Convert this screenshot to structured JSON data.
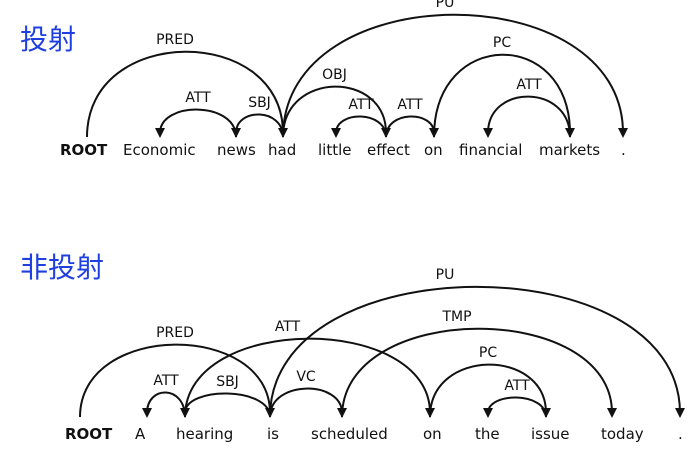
{
  "projective": {
    "title": "投射",
    "words": [
      "ROOT",
      "Economic",
      "news",
      "had",
      "little",
      "effect",
      "on",
      "financial",
      "markets",
      "."
    ],
    "arcs": [
      {
        "from": 0,
        "to": 3,
        "label": "PRED"
      },
      {
        "from": 2,
        "to": 1,
        "label": "ATT"
      },
      {
        "from": 3,
        "to": 2,
        "label": "SBJ"
      },
      {
        "from": 3,
        "to": 5,
        "label": "OBJ"
      },
      {
        "from": 5,
        "to": 4,
        "label": "ATT"
      },
      {
        "from": 5,
        "to": 6,
        "label": "ATT"
      },
      {
        "from": 3,
        "to": 9,
        "label": "PU"
      },
      {
        "from": 6,
        "to": 8,
        "label": "PC"
      },
      {
        "from": 8,
        "to": 7,
        "label": "ATT"
      }
    ]
  },
  "nonprojective": {
    "title": "非投射",
    "words": [
      "ROOT",
      "A",
      "hearing",
      "is",
      "scheduled",
      "on",
      "the",
      "issue",
      "today",
      "."
    ],
    "arcs": [
      {
        "from": 0,
        "to": 3,
        "label": "PRED"
      },
      {
        "from": 2,
        "to": 1,
        "label": "ATT"
      },
      {
        "from": 3,
        "to": 2,
        "label": "SBJ"
      },
      {
        "from": 2,
        "to": 5,
        "label": "ATT"
      },
      {
        "from": 3,
        "to": 4,
        "label": "VC"
      },
      {
        "from": 3,
        "to": 9,
        "label": "PU"
      },
      {
        "from": 4,
        "to": 8,
        "label": "TMP"
      },
      {
        "from": 5,
        "to": 7,
        "label": "PC"
      },
      {
        "from": 7,
        "to": 6,
        "label": "ATT"
      }
    ]
  }
}
